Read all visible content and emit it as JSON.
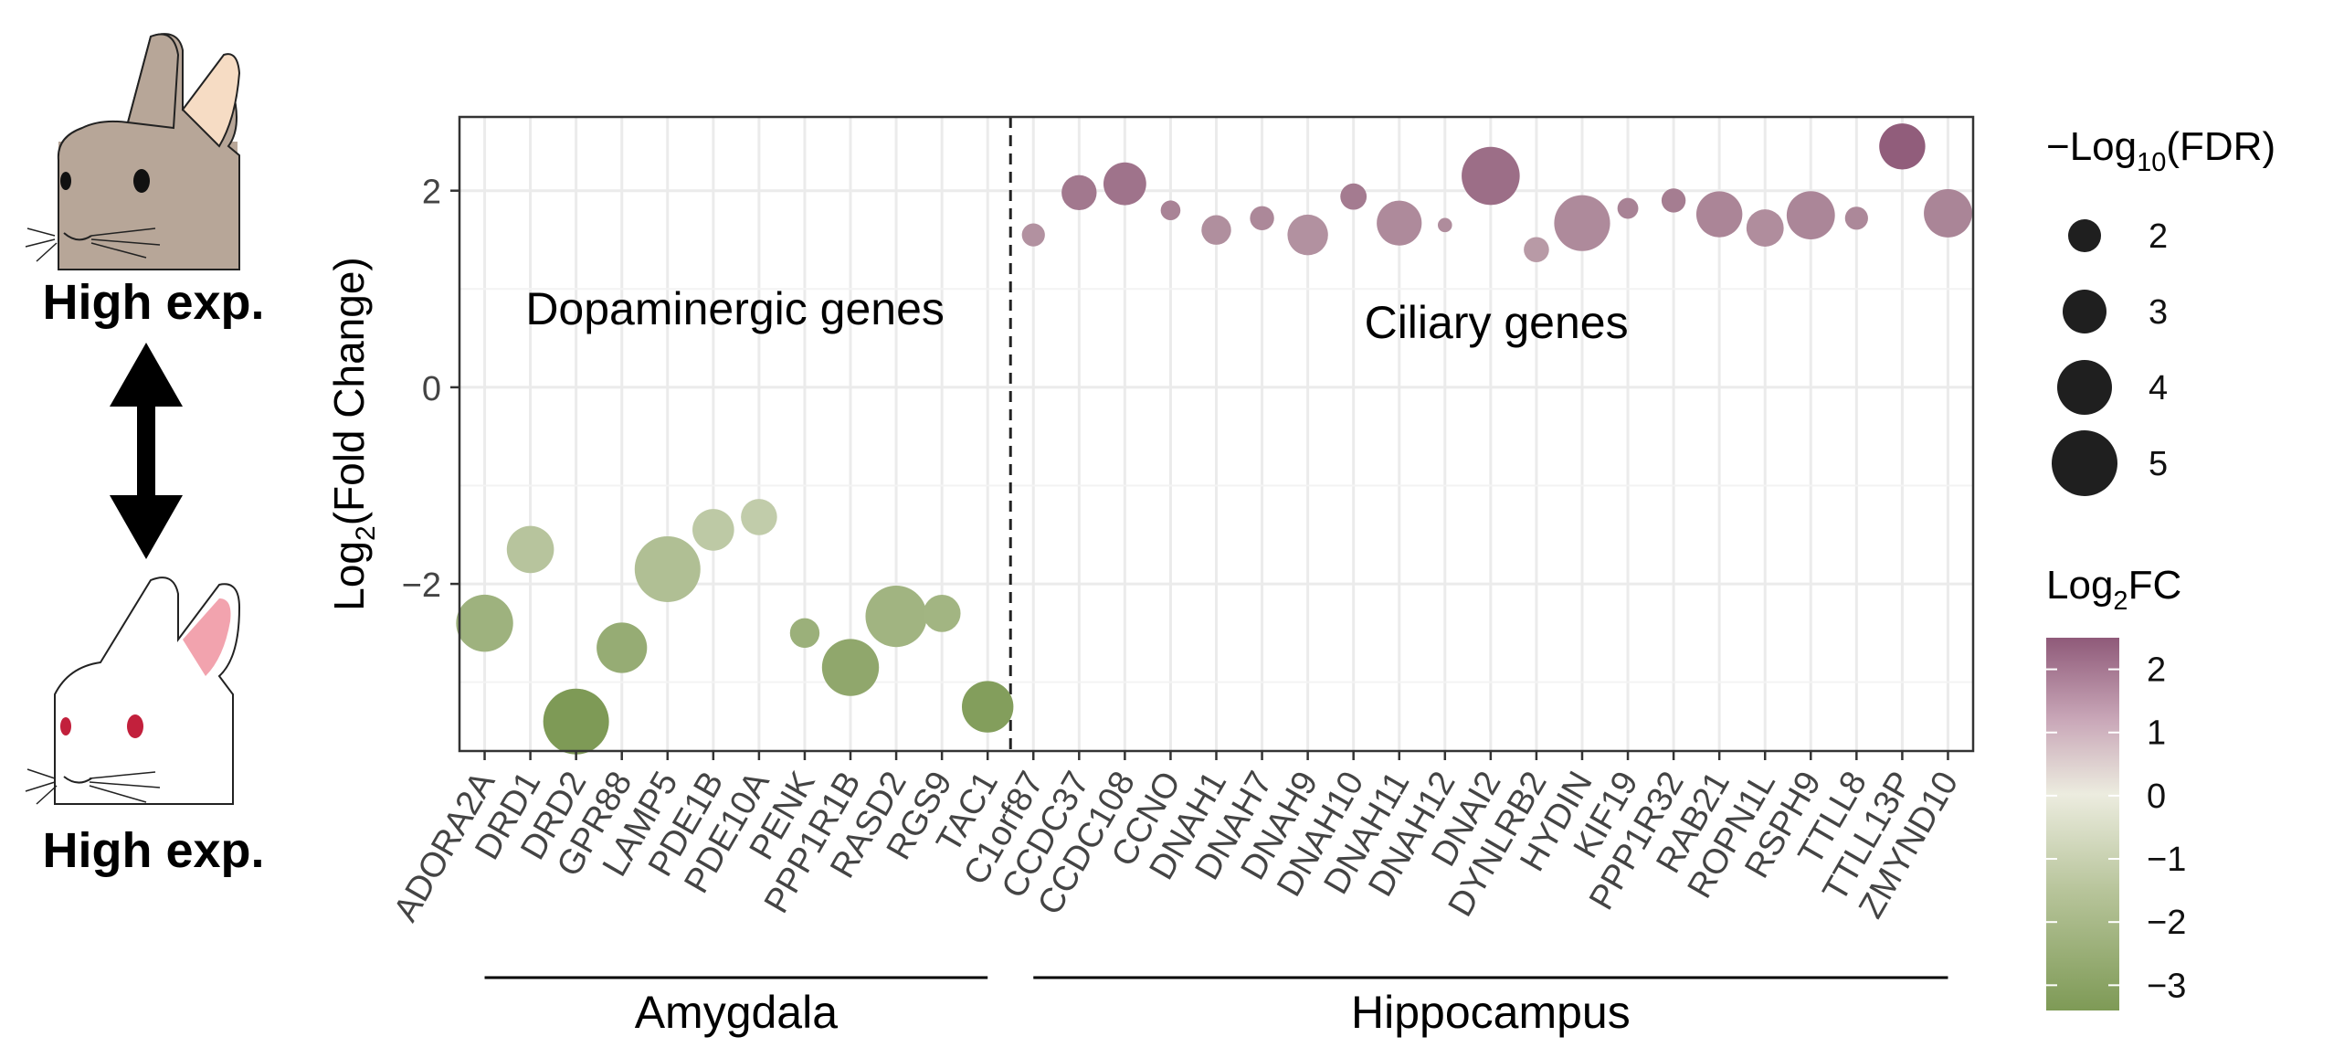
{
  "left_panel": {
    "top_label": "High exp.",
    "bottom_label": "High exp."
  },
  "chart_data": {
    "type": "scatter",
    "ylabel_main": "Log",
    "ylabel_sub": "2",
    "ylabel_rest": "(Fold Change)",
    "ylim": [
      -3.7,
      2.75
    ],
    "yticks": [
      2,
      0,
      -2
    ],
    "ytick_labels": [
      "2",
      "0",
      "−2"
    ],
    "grid": true,
    "divider_after_category": "TAC1",
    "panel_labels": [
      {
        "text": "Dopaminergic genes",
        "position": "left panel, upper"
      },
      {
        "text": "Ciliary genes",
        "position": "right panel, upper"
      }
    ],
    "groups": [
      {
        "label": "Amygdala",
        "from": "ADORA2A",
        "to": "TAC1"
      },
      {
        "label": "Hippocampus",
        "from": "C1orf87",
        "to": "ZMYND10"
      }
    ],
    "categories": [
      "ADORA2A",
      "DRD1",
      "DRD2",
      "GPR88",
      "LAMP5",
      "PDE1B",
      "PDE10A",
      "PENK",
      "PPP1R1B",
      "RASD2",
      "RGS9",
      "TAC1",
      "C1orf87",
      "CCDC37",
      "CCDC108",
      "CCNO",
      "DNAH1",
      "DNAH7",
      "DNAH9",
      "DNAH10",
      "DNAH11",
      "DNAH12",
      "DNAI2",
      "DYNLRB2",
      "HYDIN",
      "KIF19",
      "PPP1R32",
      "RAB21",
      "ROPN1L",
      "RSPH9",
      "TTLL8",
      "TTLL13P",
      "ZMYND10"
    ],
    "points": [
      {
        "gene": "ADORA2A",
        "log2fc": -2.4,
        "neglog10fdr": 4.2
      },
      {
        "gene": "DRD1",
        "log2fc": -1.65,
        "neglog10fdr": 3.3
      },
      {
        "gene": "DRD2",
        "log2fc": -3.4,
        "neglog10fdr": 5.0
      },
      {
        "gene": "GPR88",
        "log2fc": -2.65,
        "neglog10fdr": 3.6
      },
      {
        "gene": "LAMP5",
        "log2fc": -1.85,
        "neglog10fdr": 5.0
      },
      {
        "gene": "PDE1B",
        "log2fc": -1.45,
        "neglog10fdr": 2.8
      },
      {
        "gene": "PDE10A",
        "log2fc": -1.32,
        "neglog10fdr": 2.3
      },
      {
        "gene": "PENK",
        "log2fc": -2.5,
        "neglog10fdr": 1.7
      },
      {
        "gene": "PPP1R1B",
        "log2fc": -2.85,
        "neglog10fdr": 4.2
      },
      {
        "gene": "RASD2",
        "log2fc": -2.33,
        "neglog10fdr": 4.6
      },
      {
        "gene": "RGS9",
        "log2fc": -2.3,
        "neglog10fdr": 2.4
      },
      {
        "gene": "TAC1",
        "log2fc": -3.25,
        "neglog10fdr": 3.7
      },
      {
        "gene": "C1orf87",
        "log2fc": 1.55,
        "neglog10fdr": 1.1
      },
      {
        "gene": "CCDC37",
        "log2fc": 1.98,
        "neglog10fdr": 2.2
      },
      {
        "gene": "CCDC108",
        "log2fc": 2.07,
        "neglog10fdr": 2.9
      },
      {
        "gene": "CCNO",
        "log2fc": 1.8,
        "neglog10fdr": 0.8
      },
      {
        "gene": "DNAH1",
        "log2fc": 1.6,
        "neglog10fdr": 1.7
      },
      {
        "gene": "DNAH7",
        "log2fc": 1.72,
        "neglog10fdr": 1.2
      },
      {
        "gene": "DNAH9",
        "log2fc": 1.55,
        "neglog10fdr": 2.7
      },
      {
        "gene": "DNAH10",
        "log2fc": 1.94,
        "neglog10fdr": 1.4
      },
      {
        "gene": "DNAH11",
        "log2fc": 1.67,
        "neglog10fdr": 3.1
      },
      {
        "gene": "DNAH12",
        "log2fc": 1.65,
        "neglog10fdr": 0.3
      },
      {
        "gene": "DNAI2",
        "log2fc": 2.15,
        "neglog10fdr": 4.3
      },
      {
        "gene": "DYNLRB2",
        "log2fc": 1.4,
        "neglog10fdr": 1.3
      },
      {
        "gene": "HYDIN",
        "log2fc": 1.67,
        "neglog10fdr": 4.1
      },
      {
        "gene": "KIF19",
        "log2fc": 1.82,
        "neglog10fdr": 0.9
      },
      {
        "gene": "PPP1R32",
        "log2fc": 1.9,
        "neglog10fdr": 1.2
      },
      {
        "gene": "RAB21",
        "log2fc": 1.76,
        "neglog10fdr": 3.2
      },
      {
        "gene": "ROPN1L",
        "log2fc": 1.62,
        "neglog10fdr": 2.4
      },
      {
        "gene": "RSPH9",
        "log2fc": 1.75,
        "neglog10fdr": 3.4
      },
      {
        "gene": "TTLL8",
        "log2fc": 1.72,
        "neglog10fdr": 1.1
      },
      {
        "gene": "TTLL13P",
        "log2fc": 2.45,
        "neglog10fdr": 3.2
      },
      {
        "gene": "ZMYND10",
        "log2fc": 1.77,
        "neglog10fdr": 3.4
      }
    ],
    "size_legend": {
      "title_main": "−Log",
      "title_sub": "10",
      "title_rest": "(FDR)",
      "values": [
        2,
        3,
        4,
        5
      ],
      "labels": [
        "2",
        "3",
        "4",
        "5"
      ],
      "placement": "right, top"
    },
    "color_legend": {
      "title_main": "Log",
      "title_sub": "2",
      "title_rest": "FC",
      "range": [
        -3.4,
        2.5
      ],
      "ticks": [
        2,
        1,
        0,
        -1,
        -2,
        -3
      ],
      "tick_labels": [
        "2",
        "1",
        "0",
        "−1",
        "−2",
        "−3"
      ],
      "placement": "right, bottom",
      "colors": {
        "low": "#7e9a56",
        "mid": "#ececdf",
        "high": "#8f5a79"
      }
    }
  }
}
